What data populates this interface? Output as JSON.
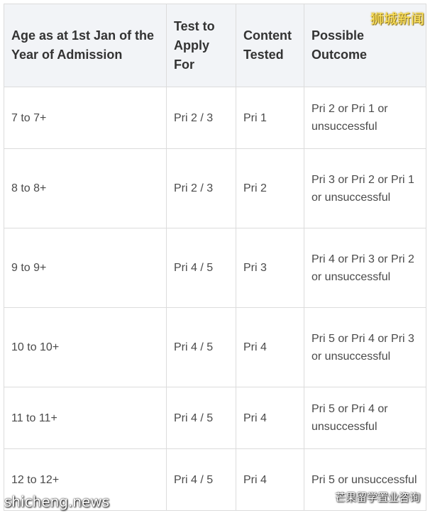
{
  "table": {
    "headers": {
      "age": "Age as at 1st Jan of the Year of Admission",
      "test": "Test to Apply For",
      "content": "Content Tested",
      "outcome": "Possible Outcome"
    },
    "rows": [
      {
        "age": "7 to 7+",
        "test": "Pri 2 / 3",
        "content": "Pri 1",
        "outcome": "Pri 2 or Pri 1 or unsuccessful"
      },
      {
        "age": "8 to 8+",
        "test": "Pri 2 / 3",
        "content": "Pri 2",
        "outcome": "Pri 3 or Pri 2 or Pri 1 or unsuccessful"
      },
      {
        "age": "9 to 9+",
        "test": "Pri 4 / 5",
        "content": "Pri 3",
        "outcome": "Pri 4 or Pri 3 or Pri 2 or unsuccessful"
      },
      {
        "age": "10 to 10+",
        "test": "Pri 4 / 5",
        "content": "Pri 4",
        "outcome": "Pri 5 or Pri 4 or Pri 3 or unsuccessful"
      },
      {
        "age": "11 to 11+",
        "test": "Pri 4 / 5",
        "content": "Pri 4",
        "outcome": "Pri 5 or Pri 4 or unsuccessful"
      },
      {
        "age": "12 to 12+",
        "test": "Pri 4 / 5",
        "content": "Pri 4",
        "outcome": "Pri 5 or unsuccessful"
      }
    ]
  },
  "watermarks": {
    "top_right": "狮城新闻",
    "bottom_left": "shicheng.news",
    "bottom_right": "芒果留学置业咨询",
    "bottom_right_icon": "wechat-icon"
  }
}
